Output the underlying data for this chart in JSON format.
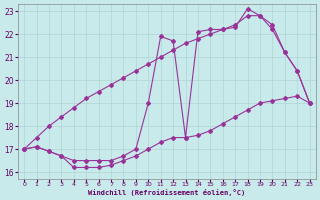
{
  "background_color": "#c8eaea",
  "grid_color": "#b0d4d4",
  "line_color": "#993399",
  "marker_color": "#993399",
  "xlabel": "Windchill (Refroidissement éolien,°C)",
  "xlabel_color": "#660066",
  "tick_color": "#660066",
  "xlim": [
    -0.5,
    23.5
  ],
  "ylim": [
    15.7,
    23.3
  ],
  "yticks": [
    16,
    17,
    18,
    19,
    20,
    21,
    22,
    23
  ],
  "xticks": [
    0,
    1,
    2,
    3,
    4,
    5,
    6,
    7,
    8,
    9,
    10,
    11,
    12,
    13,
    14,
    15,
    16,
    17,
    18,
    19,
    20,
    21,
    22,
    23
  ],
  "curve1_x": [
    0,
    1,
    2,
    3,
    4,
    5,
    6,
    7,
    8,
    9,
    10,
    11,
    12,
    13,
    14,
    15,
    16,
    17,
    18,
    19,
    20,
    21,
    22,
    23
  ],
  "curve1_y": [
    17.0,
    17.1,
    16.9,
    16.7,
    16.2,
    16.2,
    16.2,
    16.3,
    16.5,
    16.7,
    17.0,
    17.3,
    17.5,
    17.5,
    17.6,
    17.8,
    18.1,
    18.4,
    18.7,
    19.0,
    19.1,
    19.2,
    19.3,
    19.0
  ],
  "curve2_x": [
    0,
    1,
    2,
    3,
    4,
    5,
    6,
    7,
    8,
    9,
    10,
    11,
    12,
    13,
    14,
    15,
    16,
    17,
    18,
    19,
    20,
    21,
    22,
    23
  ],
  "curve2_y": [
    17.0,
    17.1,
    16.9,
    16.7,
    16.5,
    16.5,
    16.5,
    16.5,
    16.7,
    17.0,
    19.0,
    21.9,
    21.7,
    17.5,
    22.1,
    22.2,
    22.2,
    22.3,
    23.1,
    22.8,
    22.2,
    21.2,
    20.4,
    19.0
  ],
  "curve3_x": [
    0,
    1,
    2,
    3,
    4,
    5,
    6,
    7,
    8,
    9,
    10,
    11,
    12,
    13,
    14,
    15,
    16,
    17,
    18,
    19,
    20,
    21,
    22,
    23
  ],
  "curve3_y": [
    17.0,
    17.5,
    18.0,
    18.4,
    18.8,
    19.2,
    19.5,
    19.8,
    20.1,
    20.4,
    20.7,
    21.0,
    21.3,
    21.6,
    21.8,
    22.0,
    22.2,
    22.4,
    22.8,
    22.8,
    22.4,
    21.2,
    20.4,
    19.0
  ]
}
